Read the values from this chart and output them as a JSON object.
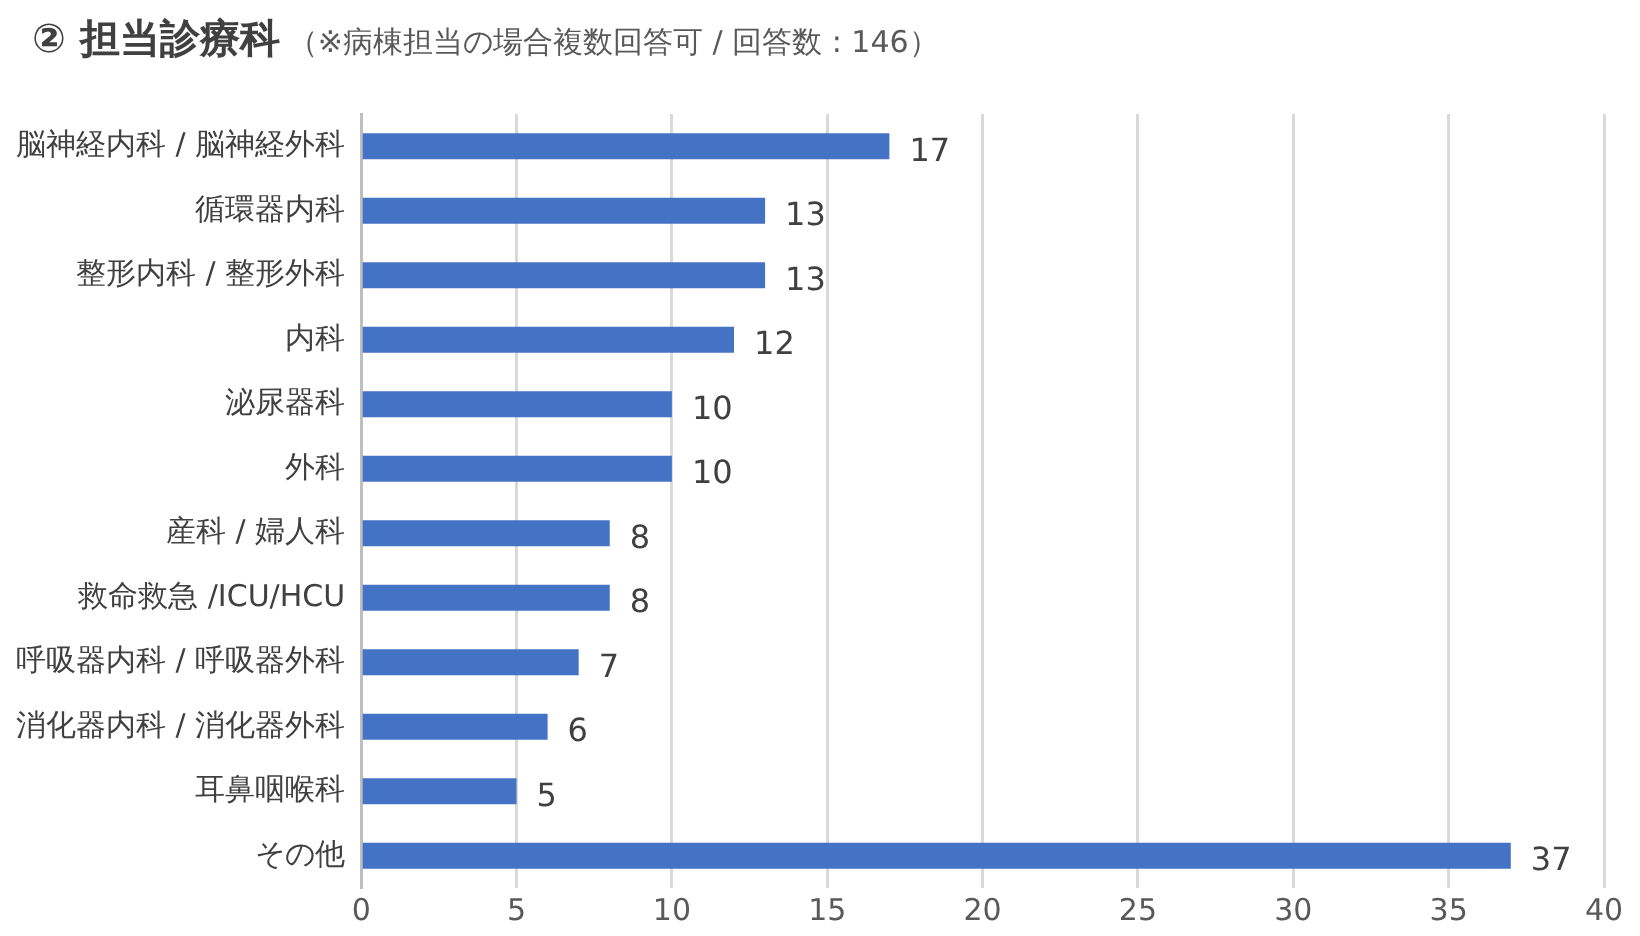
{
  "chart_data": {
    "type": "bar",
    "orientation": "horizontal",
    "title": "② 担当診療科",
    "subtitle": "（※病棟担当の場合複数回答可 / 回答数 : 146）",
    "categories": [
      "脳神経内科 / 脳神経外科",
      "循環器内科",
      "整形内科 / 整形外科",
      "内科",
      "泌尿器科",
      "外科",
      "産科 / 婦人科",
      "救命救急 /ICU/HCU",
      "呼吸器内科 / 呼吸器外科",
      "消化器内科 / 消化器外科",
      "耳鼻咽喉科",
      "その他"
    ],
    "values": [
      17,
      13,
      13,
      12,
      10,
      10,
      8,
      8,
      7,
      6,
      5,
      37
    ],
    "color": "#4472c4",
    "xlim": [
      0,
      40
    ],
    "xticks": [
      0,
      5,
      10,
      15,
      20,
      25,
      30,
      35,
      40
    ],
    "grid": "x",
    "data_labels": true,
    "legend": false
  }
}
